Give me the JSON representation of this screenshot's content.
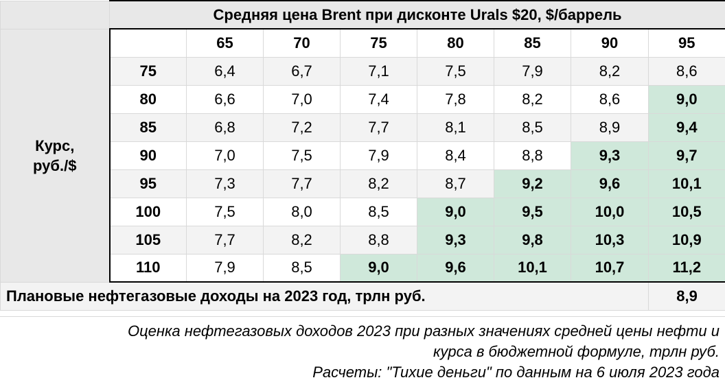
{
  "table": {
    "title": "Средняя цена Brent при дисконте Urals $20, $/баррель",
    "row_axis_label_line1": "Курс,",
    "row_axis_label_line2": "руб./$",
    "columns": [
      "65",
      "70",
      "75",
      "80",
      "85",
      "90",
      "95"
    ],
    "rows": [
      {
        "rate": "75",
        "values": [
          "6,4",
          "6,7",
          "7,1",
          "7,5",
          "7,9",
          "8,2",
          "8,6"
        ]
      },
      {
        "rate": "80",
        "values": [
          "6,6",
          "7,0",
          "7,4",
          "7,8",
          "8,2",
          "8,6",
          "9,0"
        ]
      },
      {
        "rate": "85",
        "values": [
          "6,8",
          "7,2",
          "7,7",
          "8,1",
          "8,5",
          "8,9",
          "9,4"
        ]
      },
      {
        "rate": "90",
        "values": [
          "7,0",
          "7,5",
          "7,9",
          "8,4",
          "8,8",
          "9,3",
          "9,7"
        ]
      },
      {
        "rate": "95",
        "values": [
          "7,3",
          "7,7",
          "8,2",
          "8,7",
          "9,2",
          "9,6",
          "10,1"
        ]
      },
      {
        "rate": "100",
        "values": [
          "7,5",
          "8,0",
          "8,5",
          "9,0",
          "9,5",
          "10,0",
          "10,5"
        ]
      },
      {
        "rate": "105",
        "values": [
          "7,7",
          "8,2",
          "8,8",
          "9,3",
          "9,8",
          "10,3",
          "10,9"
        ]
      },
      {
        "rate": "110",
        "values": [
          "7,9",
          "8,5",
          "9,0",
          "9,6",
          "10,1",
          "10,7",
          "11,2"
        ]
      }
    ],
    "highlight_threshold": 8.9,
    "highlight_color": "#cfe8da"
  },
  "plan": {
    "label": "Плановые нефтегазовые доходы на 2023 год, трлн руб.",
    "value": "8,9"
  },
  "note": {
    "line1": "Оценка нефтегазовых доходов 2023 при разных значениях средней цены нефти и",
    "line2": "курса в бюджетной формуле, трлн руб.",
    "line3": "Расчеты: \"Тихие деньги\" по данным на 6 июля 2023 года"
  }
}
